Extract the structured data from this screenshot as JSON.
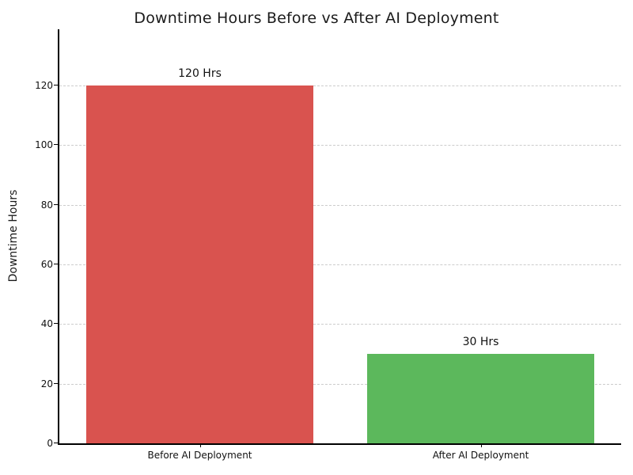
{
  "chart_data": {
    "type": "bar",
    "title": "Downtime Hours Before vs After AI Deployment",
    "categories": [
      "Before AI Deployment",
      "After AI Deployment"
    ],
    "values": [
      120,
      30
    ],
    "bar_labels": [
      "120 Hrs",
      "30 Hrs"
    ],
    "bar_colors": [
      "#d9534f",
      "#5cb85c"
    ],
    "xlabel": "",
    "ylabel": "Downtime Hours",
    "ylim": [
      0,
      138.8
    ],
    "yticks": [
      0,
      20,
      40,
      60,
      80,
      100,
      120
    ],
    "grid": "horizontal-dashed",
    "legend_position": "none"
  },
  "colors": {
    "background": "#ffffff",
    "grid": "#cccccc",
    "axis": "#000000",
    "text": "#1b1b1b"
  }
}
